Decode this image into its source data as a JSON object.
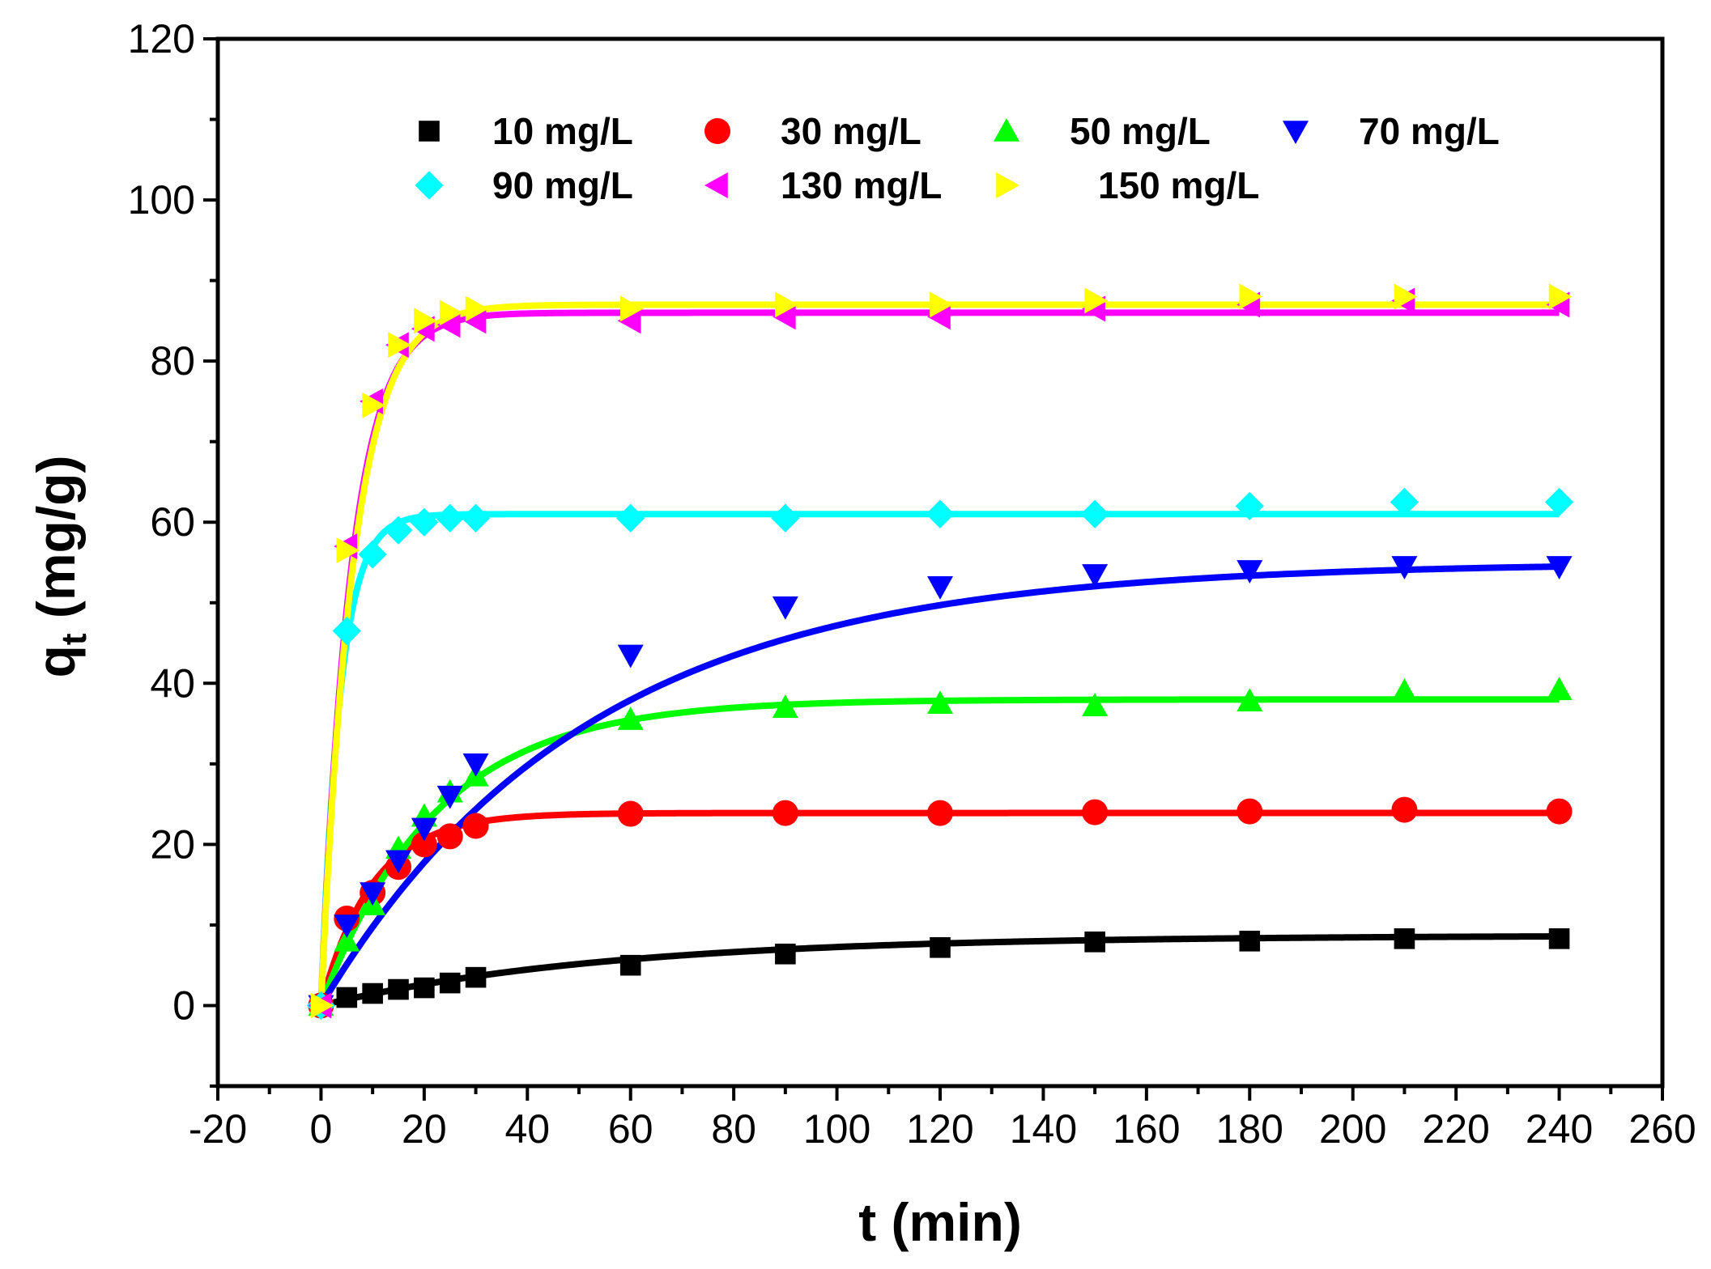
{
  "chart_data": {
    "type": "scatter",
    "title": "",
    "xlabel": "t (min)",
    "ylabel_main": "q",
    "ylabel_sub": "t",
    "ylabel_unit": "(mg/g)",
    "xlim": [
      -20,
      260
    ],
    "ylim": [
      -10,
      120
    ],
    "xticks": [
      -20,
      0,
      20,
      40,
      60,
      80,
      100,
      120,
      140,
      160,
      180,
      200,
      220,
      240,
      260
    ],
    "yticks": [
      0,
      20,
      40,
      60,
      80,
      100,
      120
    ],
    "legend_position": "top",
    "grid": false,
    "x": [
      0,
      5,
      10,
      15,
      20,
      25,
      30,
      60,
      90,
      120,
      150,
      180,
      210,
      240
    ],
    "series": [
      {
        "name": "10 mg/L",
        "marker": "square",
        "color": "#000000",
        "values": [
          0,
          1.0,
          1.5,
          2.0,
          2.2,
          2.8,
          3.5,
          5.0,
          6.4,
          7.2,
          7.9,
          8.0,
          8.3,
          8.3
        ],
        "fit": {
          "qe": 8.7,
          "k": 0.018
        }
      },
      {
        "name": "30 mg/L",
        "marker": "circle",
        "color": "#ff0000",
        "values": [
          0,
          10.8,
          14.0,
          17.2,
          20.0,
          21.0,
          22.3,
          23.8,
          23.9,
          23.9,
          24.0,
          24.1,
          24.3,
          24.1
        ],
        "fit": {
          "qe": 23.9,
          "k": 0.1
        }
      },
      {
        "name": "50 mg/L",
        "marker": "triangle-up",
        "color": "#00ff00",
        "values": [
          0,
          8.0,
          12.5,
          19.5,
          23.5,
          26.5,
          28.5,
          35.5,
          37.0,
          37.5,
          37.2,
          37.8,
          39.0,
          39.2
        ],
        "fit": {
          "qe": 38.0,
          "k": 0.045
        }
      },
      {
        "name": "70 mg/L",
        "marker": "triangle-down",
        "color": "#0000ff",
        "values": [
          0,
          10.0,
          14.0,
          18.0,
          22.0,
          26.0,
          30.0,
          43.5,
          49.5,
          52.0,
          53.5,
          54.0,
          54.5,
          54.5
        ],
        "fit": {
          "qe": 55.0,
          "k": 0.0195
        }
      },
      {
        "name": "90 mg/L",
        "marker": "diamond",
        "color": "#00ffff",
        "values": [
          0,
          46.5,
          56.0,
          59.0,
          60.0,
          60.5,
          60.5,
          60.5,
          60.5,
          61.0,
          61.0,
          62.0,
          62.5,
          62.5
        ],
        "fit": {
          "qe": 61.0,
          "k": 0.27
        }
      },
      {
        "name": "130 mg/L",
        "marker": "triangle-left",
        "color": "#ff00ff",
        "values": [
          0,
          57.0,
          75.0,
          82.0,
          84.0,
          84.5,
          85.0,
          85.0,
          85.5,
          85.5,
          86.5,
          87.0,
          87.5,
          87.0
        ],
        "fit": {
          "qe": 86.0,
          "k": 0.17
        }
      },
      {
        "name": "150 mg/L",
        "marker": "triangle-right",
        "color": "#ffff00",
        "values": [
          0,
          56.5,
          74.5,
          82.0,
          85.0,
          86.0,
          86.5,
          86.5,
          87.0,
          87.0,
          87.5,
          88.0,
          88.0,
          88.0
        ],
        "fit": {
          "qe": 87.0,
          "k": 0.16
        }
      }
    ]
  }
}
